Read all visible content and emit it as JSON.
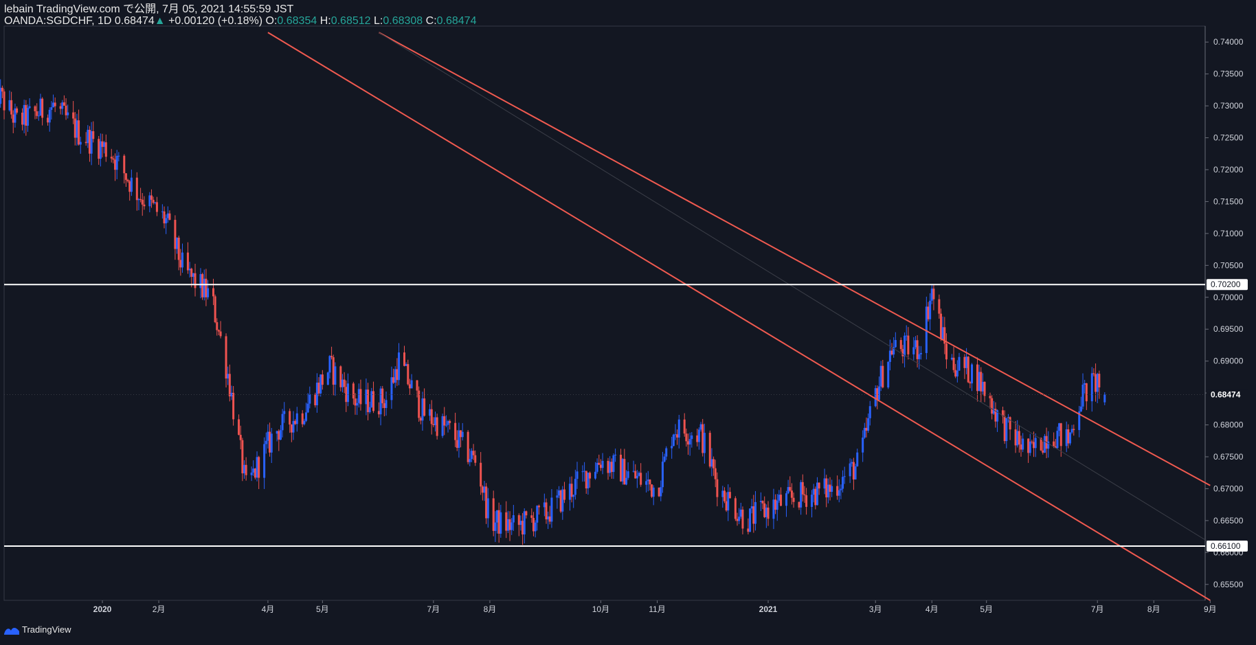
{
  "header": {
    "line1": "lebain TradingView.com で公開, 7月 05, 2021 14:55:59 JST",
    "symbol": "OANDA:SGDCHF, 1D",
    "last": "0.68474",
    "change": "+0.00120 (+0.18%)",
    "o_label": "O:",
    "o_value": "0.68354",
    "h_label": "H:",
    "h_value": "0.68512",
    "l_label": "L:",
    "l_value": "0.68308",
    "c_label": "C:",
    "c_value": "0.68474"
  },
  "footer": {
    "brand": "TradingView"
  },
  "colors": {
    "background": "#131722",
    "up": "#2962ff",
    "down": "#ef5350",
    "channel": "#f05a50",
    "level": "#ffffff",
    "grid": "#363a45"
  },
  "chart_data": {
    "type": "candlestick",
    "symbol": "OANDA:SGDCHF",
    "interval": "1D",
    "ylim": [
      0.6525,
      0.7425
    ],
    "y_ticks": [
      "0.74000",
      "0.73500",
      "0.73000",
      "0.72500",
      "0.72000",
      "0.71500",
      "0.71000",
      "0.70500",
      "0.70000",
      "0.69500",
      "0.69000",
      "0.68500",
      "0.68000",
      "0.67500",
      "0.67000",
      "0.66500",
      "0.66000",
      "0.65500"
    ],
    "x_ticks": [
      "2020",
      "2月",
      "4月",
      "5月",
      "7月",
      "8月",
      "10月",
      "11月",
      "2021",
      "3月",
      "4月",
      "5月",
      "7月",
      "8月",
      "9月"
    ],
    "horizontal_levels": [
      {
        "value": 0.702,
        "label": "0.70200"
      },
      {
        "value": 0.661,
        "label": "0.66100"
      }
    ],
    "last_price": {
      "value": 0.68474,
      "label": "0.68474"
    },
    "close_path": [
      {
        "d": "2019-11-01",
        "c": 0.7335
      },
      {
        "d": "2019-11-15",
        "c": 0.7275
      },
      {
        "d": "2019-12-05",
        "c": 0.73
      },
      {
        "d": "2019-12-20",
        "c": 0.7255
      },
      {
        "d": "2020-01-05",
        "c": 0.723
      },
      {
        "d": "2020-01-20",
        "c": 0.7165
      },
      {
        "d": "2020-02-05",
        "c": 0.712
      },
      {
        "d": "2020-02-15",
        "c": 0.704
      },
      {
        "d": "2020-03-01",
        "c": 0.7
      },
      {
        "d": "2020-03-10",
        "c": 0.688
      },
      {
        "d": "2020-03-20",
        "c": 0.67
      },
      {
        "d": "2020-04-05",
        "c": 0.679
      },
      {
        "d": "2020-04-20",
        "c": 0.682
      },
      {
        "d": "2020-05-05",
        "c": 0.689
      },
      {
        "d": "2020-05-20",
        "c": 0.6835
      },
      {
        "d": "2020-06-05",
        "c": 0.684
      },
      {
        "d": "2020-06-12",
        "c": 0.69
      },
      {
        "d": "2020-06-25",
        "c": 0.682
      },
      {
        "d": "2020-07-10",
        "c": 0.679
      },
      {
        "d": "2020-07-25",
        "c": 0.674
      },
      {
        "d": "2020-08-01",
        "c": 0.665
      },
      {
        "d": "2020-08-15",
        "c": 0.664
      },
      {
        "d": "2020-09-01",
        "c": 0.666
      },
      {
        "d": "2020-09-15",
        "c": 0.67
      },
      {
        "d": "2020-10-01",
        "c": 0.6745
      },
      {
        "d": "2020-10-15",
        "c": 0.6725
      },
      {
        "d": "2020-11-01",
        "c": 0.67
      },
      {
        "d": "2020-11-10",
        "c": 0.6795
      },
      {
        "d": "2020-11-25",
        "c": 0.6785
      },
      {
        "d": "2020-12-05",
        "c": 0.67
      },
      {
        "d": "2020-12-20",
        "c": 0.665
      },
      {
        "d": "2021-01-05",
        "c": 0.6675
      },
      {
        "d": "2021-01-20",
        "c": 0.669
      },
      {
        "d": "2021-02-05",
        "c": 0.67
      },
      {
        "d": "2021-02-20",
        "c": 0.674
      },
      {
        "d": "2021-03-01",
        "c": 0.685
      },
      {
        "d": "2021-03-10",
        "c": 0.692
      },
      {
        "d": "2021-03-25",
        "c": 0.692
      },
      {
        "d": "2021-04-01",
        "c": 0.701
      },
      {
        "d": "2021-04-10",
        "c": 0.69
      },
      {
        "d": "2021-04-25",
        "c": 0.688
      },
      {
        "d": "2021-05-10",
        "c": 0.68
      },
      {
        "d": "2021-05-25",
        "c": 0.6755
      },
      {
        "d": "2021-06-05",
        "c": 0.679
      },
      {
        "d": "2021-06-15",
        "c": 0.6775
      },
      {
        "d": "2021-06-22",
        "c": 0.6845
      },
      {
        "d": "2021-07-01",
        "c": 0.687
      },
      {
        "d": "2021-07-05",
        "c": 0.68474
      }
    ],
    "channel": {
      "upper": [
        {
          "d": "2020-06-01",
          "v": 0.7415
        },
        {
          "d": "2021-09-01",
          "v": 0.6705
        }
      ],
      "lower": [
        {
          "d": "2020-04-01",
          "v": 0.7415
        },
        {
          "d": "2021-09-01",
          "v": 0.6525
        }
      ]
    }
  }
}
